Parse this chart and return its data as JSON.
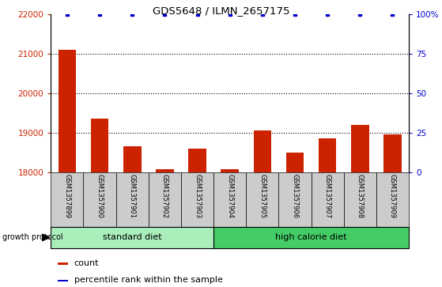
{
  "title": "GDS5648 / ILMN_2657175",
  "samples": [
    "GSM1357899",
    "GSM1357900",
    "GSM1357901",
    "GSM1357902",
    "GSM1357903",
    "GSM1357904",
    "GSM1357905",
    "GSM1357906",
    "GSM1357907",
    "GSM1357908",
    "GSM1357909"
  ],
  "counts": [
    21100,
    19350,
    18650,
    18080,
    18600,
    18080,
    19050,
    18500,
    18850,
    19200,
    18950
  ],
  "percentile_ranks": [
    100,
    100,
    100,
    100,
    100,
    100,
    100,
    100,
    100,
    100,
    100
  ],
  "ylim_left": [
    18000,
    22000
  ],
  "ylim_right": [
    0,
    100
  ],
  "yticks_left": [
    18000,
    19000,
    20000,
    21000,
    22000
  ],
  "yticks_right": [
    0,
    25,
    50,
    75,
    100
  ],
  "ytick_labels_right": [
    "0",
    "25",
    "50",
    "75",
    "100%"
  ],
  "bar_color": "#cc2200",
  "dot_color": "#0000cc",
  "groups": [
    {
      "label": "standard diet",
      "start": 0,
      "end": 5
    },
    {
      "label": "high calorie diet",
      "start": 5,
      "end": 11
    }
  ],
  "group_color_light": "#aaeebb",
  "group_color_dark": "#44cc66",
  "group_protocol_label": "growth protocol",
  "tick_area_color": "#cccccc",
  "legend_count_label": "count",
  "legend_pct_label": "percentile rank within the sample",
  "background_color": "#ffffff"
}
